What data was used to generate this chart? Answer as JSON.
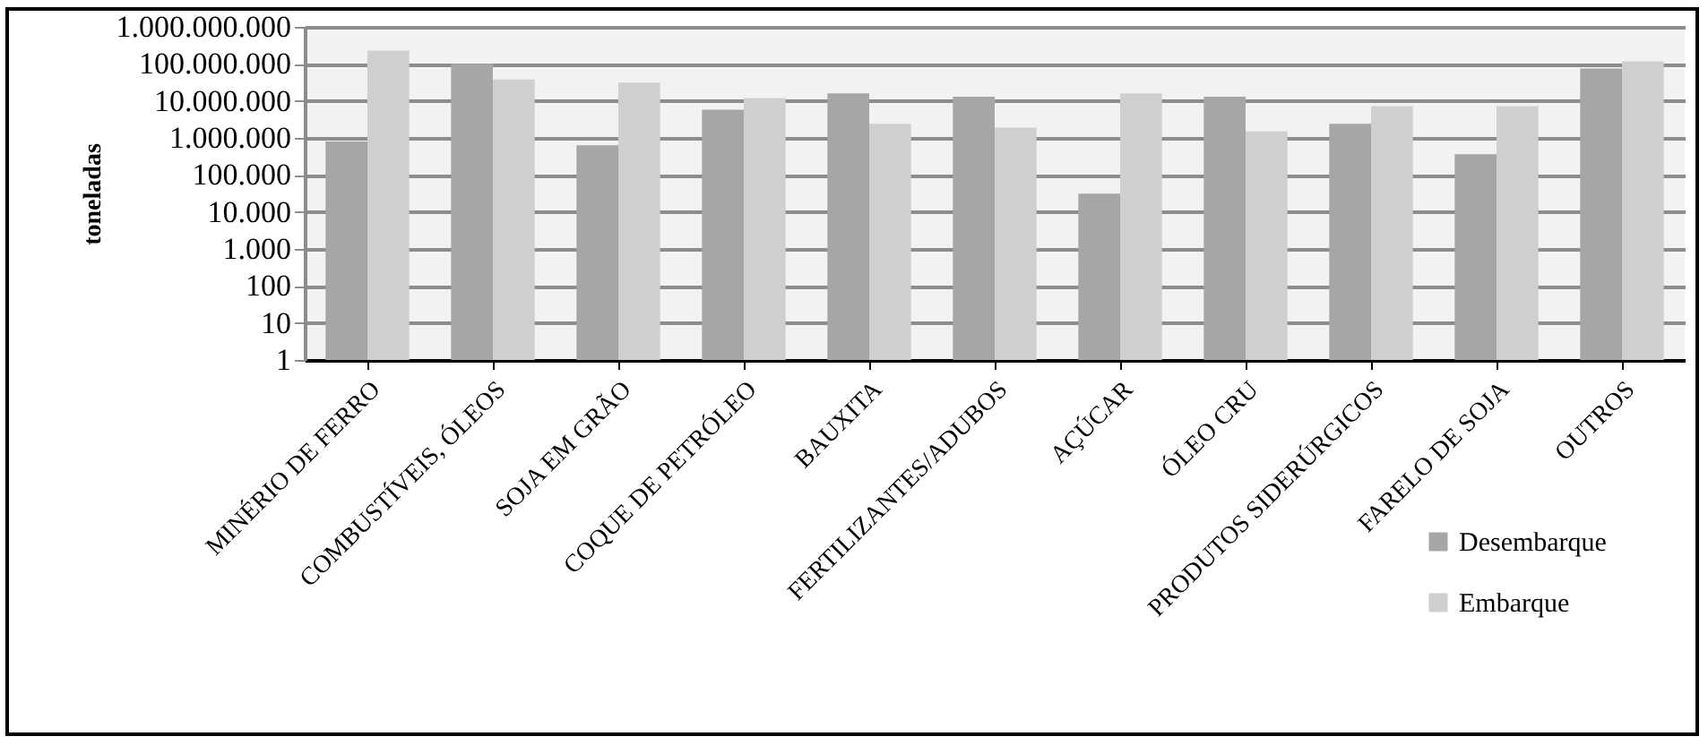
{
  "chart_data": {
    "type": "bar",
    "ylabel": "toneladas",
    "categories": [
      "MINÉRIO DE FERRO",
      "COMBUSTÍVEIS, ÓLEOS",
      "SOJA EM GRÃO",
      "COQUE DE PETRÓLEO",
      "BAUXITA",
      "FERTILIZANTES/ADUBOS",
      "AÇÚCAR",
      "ÓLEO CRU",
      "PRODUTOS SIDERÚRGICOS",
      "FARELO DE SOJA",
      "OUTROS"
    ],
    "series": [
      {
        "name": "Desembarque",
        "color": "#a6a6a6",
        "values": [
          800000,
          100000000,
          630000,
          5800000,
          16000000,
          13000000,
          31000,
          13000000,
          2400000,
          360000,
          75000000
        ]
      },
      {
        "name": "Embarque",
        "color": "#cfcfcf",
        "values": [
          230000000,
          38000000,
          31000000,
          12000000,
          2400000,
          1900000,
          16000000,
          1500000,
          7200000,
          7200000,
          117000000
        ]
      }
    ],
    "log": true,
    "ylim": [
      1,
      1000000000
    ],
    "yticks": [
      {
        "value": 1,
        "label": "1"
      },
      {
        "value": 10,
        "label": "10"
      },
      {
        "value": 100,
        "label": "100"
      },
      {
        "value": 1000,
        "label": "1.000"
      },
      {
        "value": 10000,
        "label": "10.000"
      },
      {
        "value": 100000,
        "label": "100.000"
      },
      {
        "value": 1000000,
        "label": "1.000.000"
      },
      {
        "value": 10000000,
        "label": "10.000.000"
      },
      {
        "value": 100000000,
        "label": "100.000.000"
      },
      {
        "value": 1000000000,
        "label": "1.000.000.000"
      }
    ],
    "grid": "y",
    "legend": "bottom right"
  }
}
